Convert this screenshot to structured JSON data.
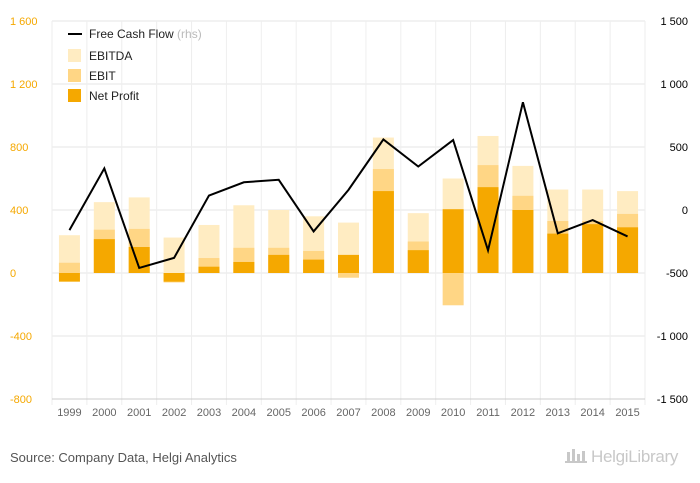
{
  "chart_data": {
    "type": "bar",
    "categories": [
      "1999",
      "2000",
      "2001",
      "2002",
      "2003",
      "2004",
      "2005",
      "2006",
      "2007",
      "2008",
      "2009",
      "2010",
      "2011",
      "2012",
      "2013",
      "2014",
      "2015"
    ],
    "series": [
      {
        "name": "EBITDA",
        "values": [
          240,
          450,
          480,
          225,
          305,
          430,
          400,
          360,
          320,
          860,
          380,
          600,
          870,
          680,
          530,
          530,
          520
        ],
        "color": "#ffecc2"
      },
      {
        "name": "EBIT",
        "values": [
          65,
          275,
          280,
          -60,
          95,
          160,
          160,
          140,
          -30,
          660,
          200,
          -205,
          685,
          490,
          330,
          330,
          375
        ],
        "color": "#ffd685"
      },
      {
        "name": "Net Profit",
        "values": [
          -55,
          215,
          165,
          -55,
          40,
          70,
          115,
          85,
          115,
          520,
          145,
          405,
          545,
          400,
          250,
          310,
          290
        ],
        "color": "#f5a800"
      },
      {
        "name": "Free Cash Flow",
        "axis": "right",
        "type": "line",
        "values": [
          -160,
          330,
          -460,
          -380,
          115,
          220,
          240,
          -170,
          160,
          560,
          345,
          555,
          -320,
          855,
          -185,
          -80,
          -210
        ],
        "color": "#000000"
      }
    ],
    "legend_note": "(rhs)",
    "y_left": {
      "min": -800,
      "max": 1600,
      "ticks": [
        -800,
        -400,
        0,
        400,
        800,
        1200,
        1600
      ],
      "tick_labels": [
        "-800",
        "-400",
        "0",
        "400",
        "800",
        "1 200",
        "1 600"
      ]
    },
    "y_right": {
      "min": -1500,
      "max": 1500,
      "ticks": [
        -1500,
        -1000,
        -500,
        0,
        500,
        1000,
        1500
      ],
      "tick_labels": [
        "-1 500",
        "-1 000",
        "-500",
        "0",
        "500",
        "1 000",
        "1 500"
      ]
    },
    "grid": true,
    "legend_position": "top-left"
  },
  "footer": {
    "source": "Source: Company Data, Helgi Analytics",
    "brand": "HelgiLibrary"
  }
}
